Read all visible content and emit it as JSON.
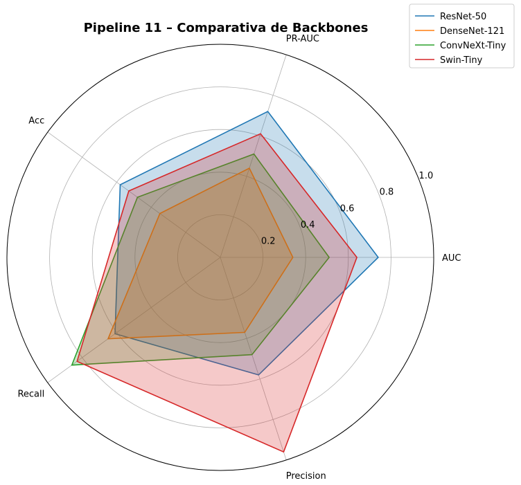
{
  "chart_data": {
    "type": "radar",
    "title": "Pipeline 11 – Comparativa de Backbones",
    "axes": [
      "AUC",
      "PR-AUC",
      "Acc",
      "Recall",
      "Precision"
    ],
    "rlim": [
      0,
      1.0
    ],
    "radial_ticks": [
      0.2,
      0.4,
      0.6,
      0.8,
      1.0
    ],
    "radial_tick_labels": [
      "0.2",
      "0.4",
      "0.6",
      "0.8",
      "1.0"
    ],
    "grid": true,
    "legend_position": "top-right",
    "series": [
      {
        "name": "ResNet-50",
        "color": "#1f77b4",
        "values": [
          0.74,
          0.72,
          0.58,
          0.61,
          0.58
        ]
      },
      {
        "name": "DenseNet-121",
        "color": "#ff7f0e",
        "values": [
          0.34,
          0.44,
          0.35,
          0.65,
          0.37
        ]
      },
      {
        "name": "ConvNeXt-Tiny",
        "color": "#2ca02c",
        "values": [
          0.51,
          0.51,
          0.48,
          0.86,
          0.48
        ]
      },
      {
        "name": "Swin-Tiny",
        "color": "#d62728",
        "values": [
          0.64,
          0.61,
          0.53,
          0.83,
          0.96
        ]
      }
    ]
  }
}
